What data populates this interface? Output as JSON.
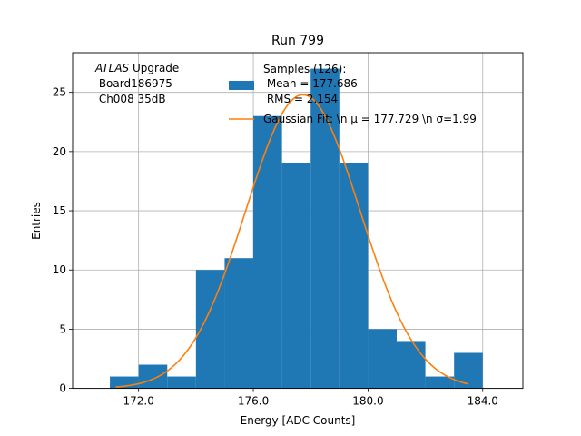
{
  "chart_data": {
    "type": "bar",
    "title": "Run 799",
    "xlabel": "Energy [ADC Counts]",
    "ylabel": "Entries",
    "xlim": [
      169.7,
      185.4
    ],
    "ylim": [
      0,
      28.35
    ],
    "grid": true,
    "xticks": [
      172.0,
      176.0,
      180.0,
      184.0
    ],
    "xtick_labels": [
      "172.0",
      "176.0",
      "180.0",
      "184.0"
    ],
    "yticks": [
      0,
      5,
      10,
      15,
      20,
      25
    ],
    "ytick_labels": [
      "0",
      "5",
      "10",
      "15",
      "20",
      "25"
    ],
    "bins": [
      {
        "x0": 171.0,
        "x1": 172.0,
        "count": 1
      },
      {
        "x0": 172.0,
        "x1": 173.0,
        "count": 2
      },
      {
        "x0": 173.0,
        "x1": 174.0,
        "count": 1
      },
      {
        "x0": 174.0,
        "x1": 175.0,
        "count": 10
      },
      {
        "x0": 175.0,
        "x1": 176.0,
        "count": 11
      },
      {
        "x0": 176.0,
        "x1": 177.0,
        "count": 23
      },
      {
        "x0": 177.0,
        "x1": 178.0,
        "count": 19
      },
      {
        "x0": 178.0,
        "x1": 179.0,
        "count": 27
      },
      {
        "x0": 179.0,
        "x1": 180.0,
        "count": 19
      },
      {
        "x0": 180.0,
        "x1": 181.0,
        "count": 5
      },
      {
        "x0": 181.0,
        "x1": 182.0,
        "count": 4
      },
      {
        "x0": 182.0,
        "x1": 183.0,
        "count": 1
      },
      {
        "x0": 183.0,
        "x1": 184.0,
        "count": 3
      }
    ],
    "fit": {
      "type": "gaussian",
      "mu": 177.729,
      "sigma": 1.99,
      "amplitude": 24.8,
      "x_range": [
        171.2,
        183.5
      ]
    },
    "hist_color": "#1f77b4",
    "fit_color": "#ff7f0e",
    "grid_color": "#b0b0b0",
    "legend_position": "upper-right",
    "annotation": {
      "line1_italic": "ATLAS",
      "line1_rest": " Upgrade",
      "line2": " Board186975",
      "line3": " Ch008 35dB"
    },
    "legend": {
      "hist_line1": "Samples (126):",
      "hist_line2": " Mean = 177.686",
      "hist_line3": " RMS = 2.154",
      "fit_label": "Gaussian Fit: \\n μ = 177.729 \\n σ=1.99"
    }
  }
}
